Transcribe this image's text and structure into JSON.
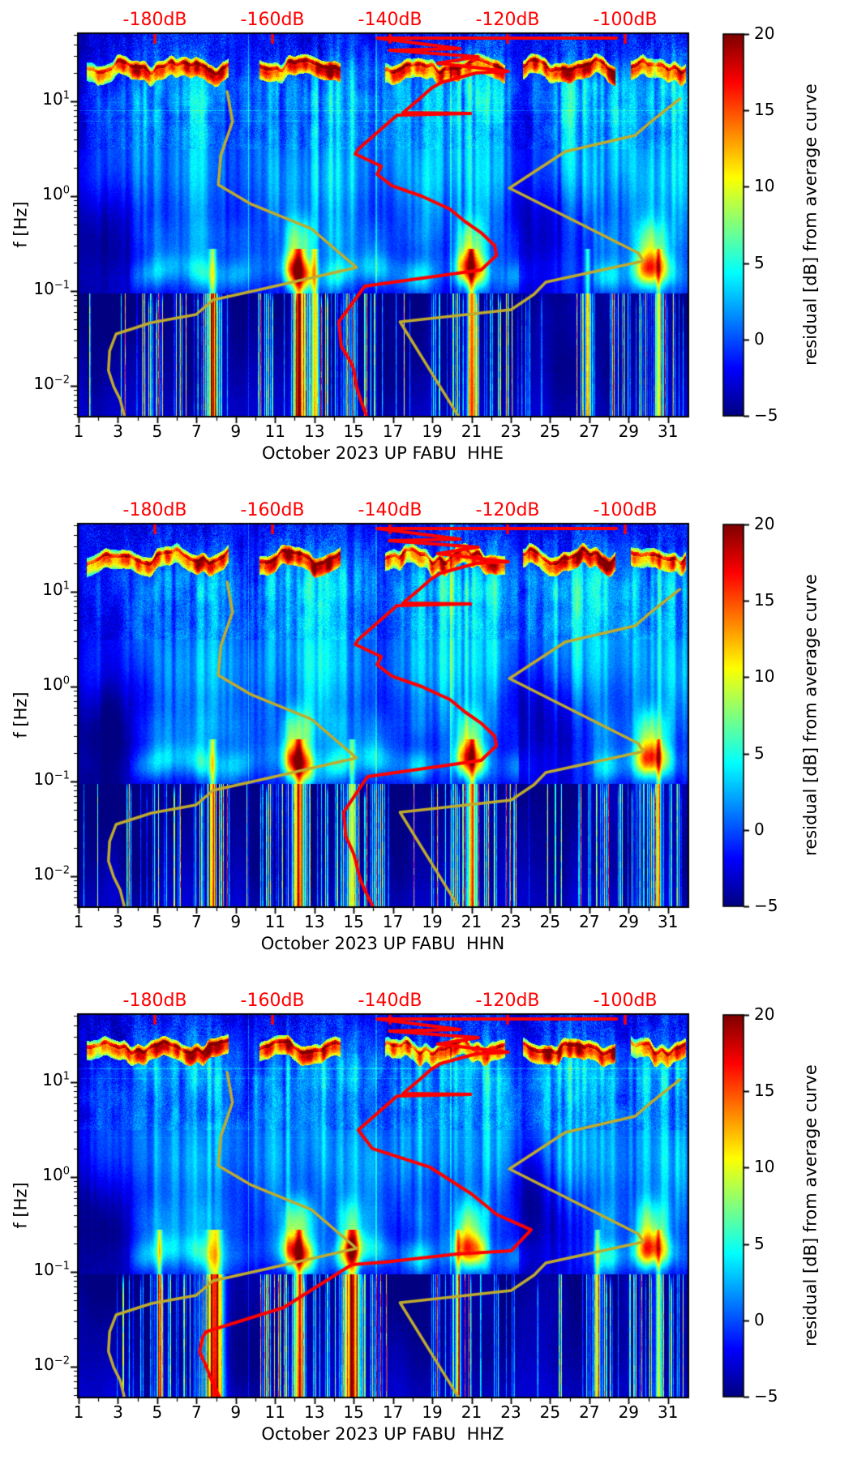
{
  "chart_data": {
    "type": "heatmap",
    "subtype": "spectrogram-residual",
    "x_axis": {
      "label_days": [
        1,
        3,
        5,
        7,
        9,
        11,
        13,
        15,
        17,
        19,
        21,
        23,
        25,
        27,
        29,
        31
      ],
      "range_days": [
        1,
        32
      ]
    },
    "top_axis": {
      "ticks_db": [
        -180,
        -160,
        -140,
        -120,
        -100
      ],
      "labels": [
        "-180dB",
        "-160dB",
        "-140dB",
        "-120dB",
        "-100dB"
      ],
      "range_db": [
        -192.97,
        -89.4
      ],
      "color": "#ff0000"
    },
    "y_axis": {
      "label": "f [Hz]",
      "scale": "log",
      "tick_exponents": [
        1,
        0,
        -1,
        -2
      ],
      "range_hz": [
        0.0048,
        51.2
      ]
    },
    "colorbar": {
      "label": "residual [dB] from average curve",
      "ticks": [
        20,
        15,
        10,
        5,
        0,
        -5
      ],
      "tick_labels": [
        "20",
        "15",
        "10",
        "5",
        "0",
        "−5"
      ],
      "range": [
        -5,
        20
      ],
      "colormap": "jet"
    },
    "overlay_curves": {
      "low_noise_model": {
        "color": "#bfab2e",
        "points_db_logf": [
          [
            -167.7,
            1.103
          ],
          [
            -166.8,
            0.786
          ],
          [
            -168.8,
            0.427
          ],
          [
            -169.2,
            0.12
          ],
          [
            -163.6,
            -0.085
          ],
          [
            -153.4,
            -0.342
          ],
          [
            -145.7,
            -0.752
          ],
          [
            -160.8,
            -0.966
          ],
          [
            -170.1,
            -1.094
          ],
          [
            -173,
            -1.248
          ],
          [
            -180.6,
            -1.333
          ],
          [
            -186.6,
            -1.453
          ],
          [
            -187.7,
            -1.632
          ],
          [
            -187.9,
            -1.838
          ],
          [
            -187,
            -2.009
          ],
          [
            -185.9,
            -2.146
          ],
          [
            -185.2,
            -2.317
          ]
        ]
      },
      "high_noise_model": {
        "color": "#bfab2e",
        "points_db_logf": [
          [
            -90.7,
            1.026
          ],
          [
            -95.6,
            0.786
          ],
          [
            -98.3,
            0.641
          ],
          [
            -110.2,
            0.47
          ],
          [
            -119.7,
            0.085
          ],
          [
            -97.8,
            -0.598
          ],
          [
            -96.9,
            -0.684
          ],
          [
            -113.5,
            -0.906
          ],
          [
            -115.5,
            -1.034
          ],
          [
            -119.4,
            -1.197
          ],
          [
            -138.3,
            -1.325
          ],
          [
            -128.4,
            -2.317
          ]
        ]
      }
    },
    "heatmap": {
      "db_min": -5,
      "db_max": 20,
      "events": [
        [
          2,
          0.5,
          3
        ],
        [
          4.8,
          1.3,
          6
        ],
        [
          7.6,
          1,
          6.5
        ],
        [
          11.7,
          1.5,
          7
        ],
        [
          13.6,
          0.7,
          5
        ],
        [
          15.1,
          0.8,
          5.5
        ],
        [
          17.4,
          0.9,
          4
        ],
        [
          19,
          0.9,
          5
        ],
        [
          20.9,
          1.3,
          7
        ],
        [
          22.2,
          0.6,
          4
        ],
        [
          25,
          1.1,
          5
        ],
        [
          26.3,
          0.8,
          5
        ],
        [
          27.7,
          0.9,
          5.5
        ],
        [
          30.1,
          1.1,
          7
        ],
        [
          31.5,
          0.5,
          5
        ]
      ],
      "stripe_windows": [
        [
          2.9,
          8.7,
          0.55
        ],
        [
          10.2,
          16.5,
          0.6
        ],
        [
          18.9,
          23.3,
          0.5
        ],
        [
          26.2,
          31.95,
          0.55
        ],
        [
          1,
          2.9,
          0.12
        ],
        [
          16.5,
          18.9,
          0.15
        ],
        [
          23.3,
          26.2,
          0.15
        ]
      ],
      "highband_windows": [
        [
          1.4,
          8.6,
          15
        ],
        [
          10.2,
          14.3,
          16
        ],
        [
          16.6,
          22.7,
          14
        ],
        [
          23.6,
          28.3,
          16
        ],
        [
          29.1,
          31.9,
          13
        ]
      ]
    },
    "panels": [
      {
        "channel": "HHE",
        "seed": 1,
        "xlabel": "October 2023 UP FABU  HHE",
        "average_psd_curve": {
          "color": "#ff0000",
          "points_db_logf": [
            [
              -101.5,
              1.667
            ],
            [
              -142.2,
              1.667
            ],
            [
              -128.1,
              1.556
            ],
            [
              -140.1,
              1.538
            ],
            [
              -125,
              1.47
            ],
            [
              -131.9,
              1.402
            ],
            [
              -119.9,
              1.316
            ],
            [
              -125.4,
              1.299
            ],
            [
              -131.4,
              1.197
            ],
            [
              -133,
              1.137
            ],
            [
              -135,
              1.026
            ],
            [
              -137.8,
              0.88
            ],
            [
              -126.3,
              0.872
            ],
            [
              -138.8,
              0.855
            ],
            [
              -145.4,
              0.496
            ],
            [
              -145.9,
              0.444
            ],
            [
              -141.5,
              0.316
            ],
            [
              -142.2,
              0.231
            ],
            [
              -139.7,
              0.111
            ],
            [
              -134.6,
              0
            ],
            [
              -129.8,
              -0.137
            ],
            [
              -127.3,
              -0.265
            ],
            [
              -124.5,
              -0.385
            ],
            [
              -122.2,
              -0.521
            ],
            [
              -121.9,
              -0.624
            ],
            [
              -124.5,
              -0.778
            ],
            [
              -144.3,
              -0.949
            ],
            [
              -144.7,
              -0.983
            ],
            [
              -148.7,
              -1.325
            ],
            [
              -148.3,
              -1.581
            ],
            [
              -146.6,
              -1.761
            ],
            [
              -146.2,
              -1.821
            ],
            [
              -145.7,
              -2.009
            ],
            [
              -145,
              -2.146
            ],
            [
              -144,
              -2.317
            ]
          ]
        },
        "microseism_peaks": [
          [
            5,
            0.8,
            4
          ],
          [
            7.3,
            0.6,
            5
          ],
          [
            9,
            0.5,
            3
          ],
          [
            11.9,
            0.35,
            15
          ],
          [
            12.6,
            0.3,
            10
          ],
          [
            14.2,
            0.5,
            5
          ],
          [
            16.1,
            0.6,
            4
          ],
          [
            18.3,
            0.5,
            5
          ],
          [
            20.7,
            0.35,
            14
          ],
          [
            21.4,
            0.3,
            9
          ],
          [
            23.3,
            0.4,
            3
          ],
          [
            27.9,
            0.5,
            4
          ],
          [
            29.9,
            0.45,
            13
          ],
          [
            30.7,
            0.4,
            7
          ]
        ],
        "hot_streaks": [
          [
            7.8,
            18,
            0.15
          ],
          [
            12.2,
            20,
            0.2
          ],
          [
            13,
            16,
            0.12
          ],
          [
            21,
            19,
            0.15
          ],
          [
            26.9,
            14,
            0.1
          ],
          [
            30.5,
            15,
            0.1
          ]
        ],
        "dark_patches": [
          [
            2.3,
            1.2,
            -0.5,
            0.5,
            3.4
          ],
          [
            24.9,
            1.7,
            -0.25,
            0.45,
            2.8
          ],
          [
            17.8,
            1,
            -0.6,
            0.3,
            2
          ]
        ],
        "spike_lines": [
          9.63,
          16.13,
          19.93
        ]
      },
      {
        "channel": "HHN",
        "seed": 2,
        "xlabel": "October 2023 UP FABU  HHN",
        "average_psd_curve": {
          "color": "#ff0000",
          "points_db_logf": [
            [
              -101.5,
              1.667
            ],
            [
              -142.2,
              1.667
            ],
            [
              -128.1,
              1.556
            ],
            [
              -140.1,
              1.538
            ],
            [
              -125,
              1.47
            ],
            [
              -131.9,
              1.402
            ],
            [
              -119.9,
              1.316
            ],
            [
              -125.4,
              1.299
            ],
            [
              -131.4,
              1.197
            ],
            [
              -133,
              1.137
            ],
            [
              -135,
              1.026
            ],
            [
              -137.8,
              0.88
            ],
            [
              -126.3,
              0.872
            ],
            [
              -138.8,
              0.855
            ],
            [
              -145.4,
              0.496
            ],
            [
              -145.9,
              0.444
            ],
            [
              -141.5,
              0.316
            ],
            [
              -142.2,
              0.231
            ],
            [
              -139.7,
              0.111
            ],
            [
              -134.6,
              0
            ],
            [
              -129.8,
              -0.137
            ],
            [
              -127.3,
              -0.265
            ],
            [
              -124.5,
              -0.385
            ],
            [
              -122.2,
              -0.521
            ],
            [
              -121.9,
              -0.624
            ],
            [
              -124.5,
              -0.778
            ],
            [
              -143.8,
              -0.949
            ],
            [
              -144.2,
              -0.983
            ],
            [
              -147.9,
              -1.325
            ],
            [
              -147.5,
              -1.581
            ],
            [
              -146.2,
              -1.761
            ],
            [
              -145.9,
              -1.821
            ],
            [
              -145.2,
              -2.009
            ],
            [
              -144.3,
              -2.146
            ],
            [
              -142.9,
              -2.317
            ]
          ]
        },
        "microseism_peaks": [
          [
            5,
            0.8,
            4
          ],
          [
            7.3,
            0.6,
            5
          ],
          [
            9,
            0.5,
            3
          ],
          [
            11.9,
            0.35,
            15
          ],
          [
            12.6,
            0.3,
            10
          ],
          [
            14.2,
            0.5,
            5
          ],
          [
            16.1,
            0.6,
            4
          ],
          [
            18.3,
            0.5,
            5
          ],
          [
            20.7,
            0.35,
            14
          ],
          [
            21.4,
            0.3,
            9
          ],
          [
            23.3,
            0.4,
            3
          ],
          [
            27.9,
            0.5,
            4
          ],
          [
            29.9,
            0.45,
            13
          ],
          [
            30.7,
            0.4,
            7
          ]
        ],
        "hot_streaks": [
          [
            7.8,
            17,
            0.12
          ],
          [
            12.2,
            19,
            0.2
          ],
          [
            14.9,
            15,
            0.12
          ],
          [
            21,
            18,
            0.15
          ],
          [
            30.5,
            14,
            0.1
          ]
        ],
        "dark_patches": [
          [
            2.3,
            1.2,
            -0.5,
            0.5,
            3.4
          ],
          [
            24.9,
            1.7,
            -0.25,
            0.45,
            2.8
          ],
          [
            17.8,
            1,
            -0.6,
            0.3,
            2
          ]
        ],
        "spike_lines": [
          9.63,
          16.13,
          19.93,
          23.9
        ]
      },
      {
        "channel": "HHZ",
        "seed": 3,
        "xlabel": "October 2023 UP FABU  HHZ",
        "average_psd_curve": {
          "color": "#ff0000",
          "points_db_logf": [
            [
              -101.5,
              1.667
            ],
            [
              -142.2,
              1.667
            ],
            [
              -128.1,
              1.556
            ],
            [
              -140.1,
              1.538
            ],
            [
              -125,
              1.47
            ],
            [
              -131.9,
              1.402
            ],
            [
              -119.9,
              1.316
            ],
            [
              -125.4,
              1.299
            ],
            [
              -131.4,
              1.197
            ],
            [
              -133,
              1.137
            ],
            [
              -135,
              1.026
            ],
            [
              -137.8,
              0.88
            ],
            [
              -126.3,
              0.872
            ],
            [
              -138.8,
              0.855
            ],
            [
              -145.4,
              0.496
            ],
            [
              -143,
              0.3
            ],
            [
              -133.2,
              0.103
            ],
            [
              -126.1,
              -0.179
            ],
            [
              -121.9,
              -0.393
            ],
            [
              -116,
              -0.556
            ],
            [
              -119.4,
              -0.778
            ],
            [
              -128.7,
              -0.812
            ],
            [
              -140.9,
              -0.897
            ],
            [
              -146.5,
              -0.923
            ],
            [
              -158.1,
              -1.376
            ],
            [
              -171.3,
              -1.632
            ],
            [
              -171.9,
              -1.692
            ],
            [
              -172.4,
              -1.846
            ],
            [
              -171.6,
              -1.949
            ],
            [
              -170.5,
              -2.12
            ],
            [
              -169.1,
              -2.308
            ]
          ]
        },
        "microseism_peaks": [
          [
            5,
            0.8,
            4
          ],
          [
            7.3,
            0.6,
            5
          ],
          [
            11.9,
            0.4,
            16
          ],
          [
            12.6,
            0.3,
            9
          ],
          [
            14.8,
            0.45,
            13
          ],
          [
            16.1,
            0.6,
            4
          ],
          [
            18.3,
            0.5,
            5
          ],
          [
            20.7,
            0.4,
            13
          ],
          [
            21.4,
            0.3,
            8
          ],
          [
            23.3,
            0.4,
            3
          ],
          [
            27.9,
            0.5,
            5
          ],
          [
            29.9,
            0.45,
            14
          ],
          [
            30.7,
            0.4,
            7
          ]
        ],
        "hot_streaks": [
          [
            5.1,
            16,
            0.1
          ],
          [
            7.9,
            20,
            0.3
          ],
          [
            12.2,
            18,
            0.15
          ],
          [
            14.9,
            20,
            0.25
          ],
          [
            20.3,
            15,
            0.1
          ],
          [
            27.4,
            15,
            0.1
          ],
          [
            30.5,
            14,
            0.1
          ]
        ],
        "dark_patches": [
          [
            2.3,
            1.2,
            -0.5,
            0.5,
            3.4
          ],
          [
            24.9,
            1.7,
            -0.25,
            0.45,
            2.8
          ],
          [
            17.8,
            1,
            -0.6,
            0.3,
            2
          ]
        ],
        "spike_lines": [
          9.63,
          16.13,
          19.93
        ]
      }
    ]
  }
}
